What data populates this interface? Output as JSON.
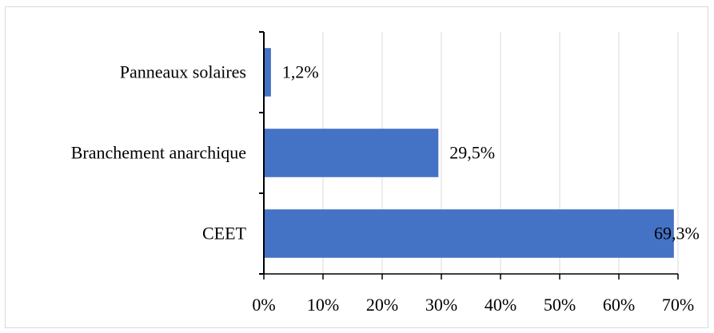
{
  "chart_data": {
    "type": "bar",
    "orientation": "horizontal",
    "categories": [
      "Panneaux solaires",
      "Branchement anarchique",
      "CEET"
    ],
    "values": [
      1.2,
      29.5,
      69.3
    ],
    "data_labels": [
      "1,2%",
      "29,5%",
      "69,3%"
    ],
    "xlim": [
      0,
      70
    ],
    "x_ticks": [
      0,
      10,
      20,
      30,
      40,
      50,
      60,
      70
    ],
    "x_tick_labels": [
      "0%",
      "10%",
      "20%",
      "30%",
      "40%",
      "50%",
      "60%",
      "70%"
    ],
    "title": "",
    "xlabel": "",
    "ylabel": "",
    "grid": "vertical",
    "legend": "none",
    "bar_color": "#4472c4",
    "grid_color": "#d9d9d9"
  }
}
